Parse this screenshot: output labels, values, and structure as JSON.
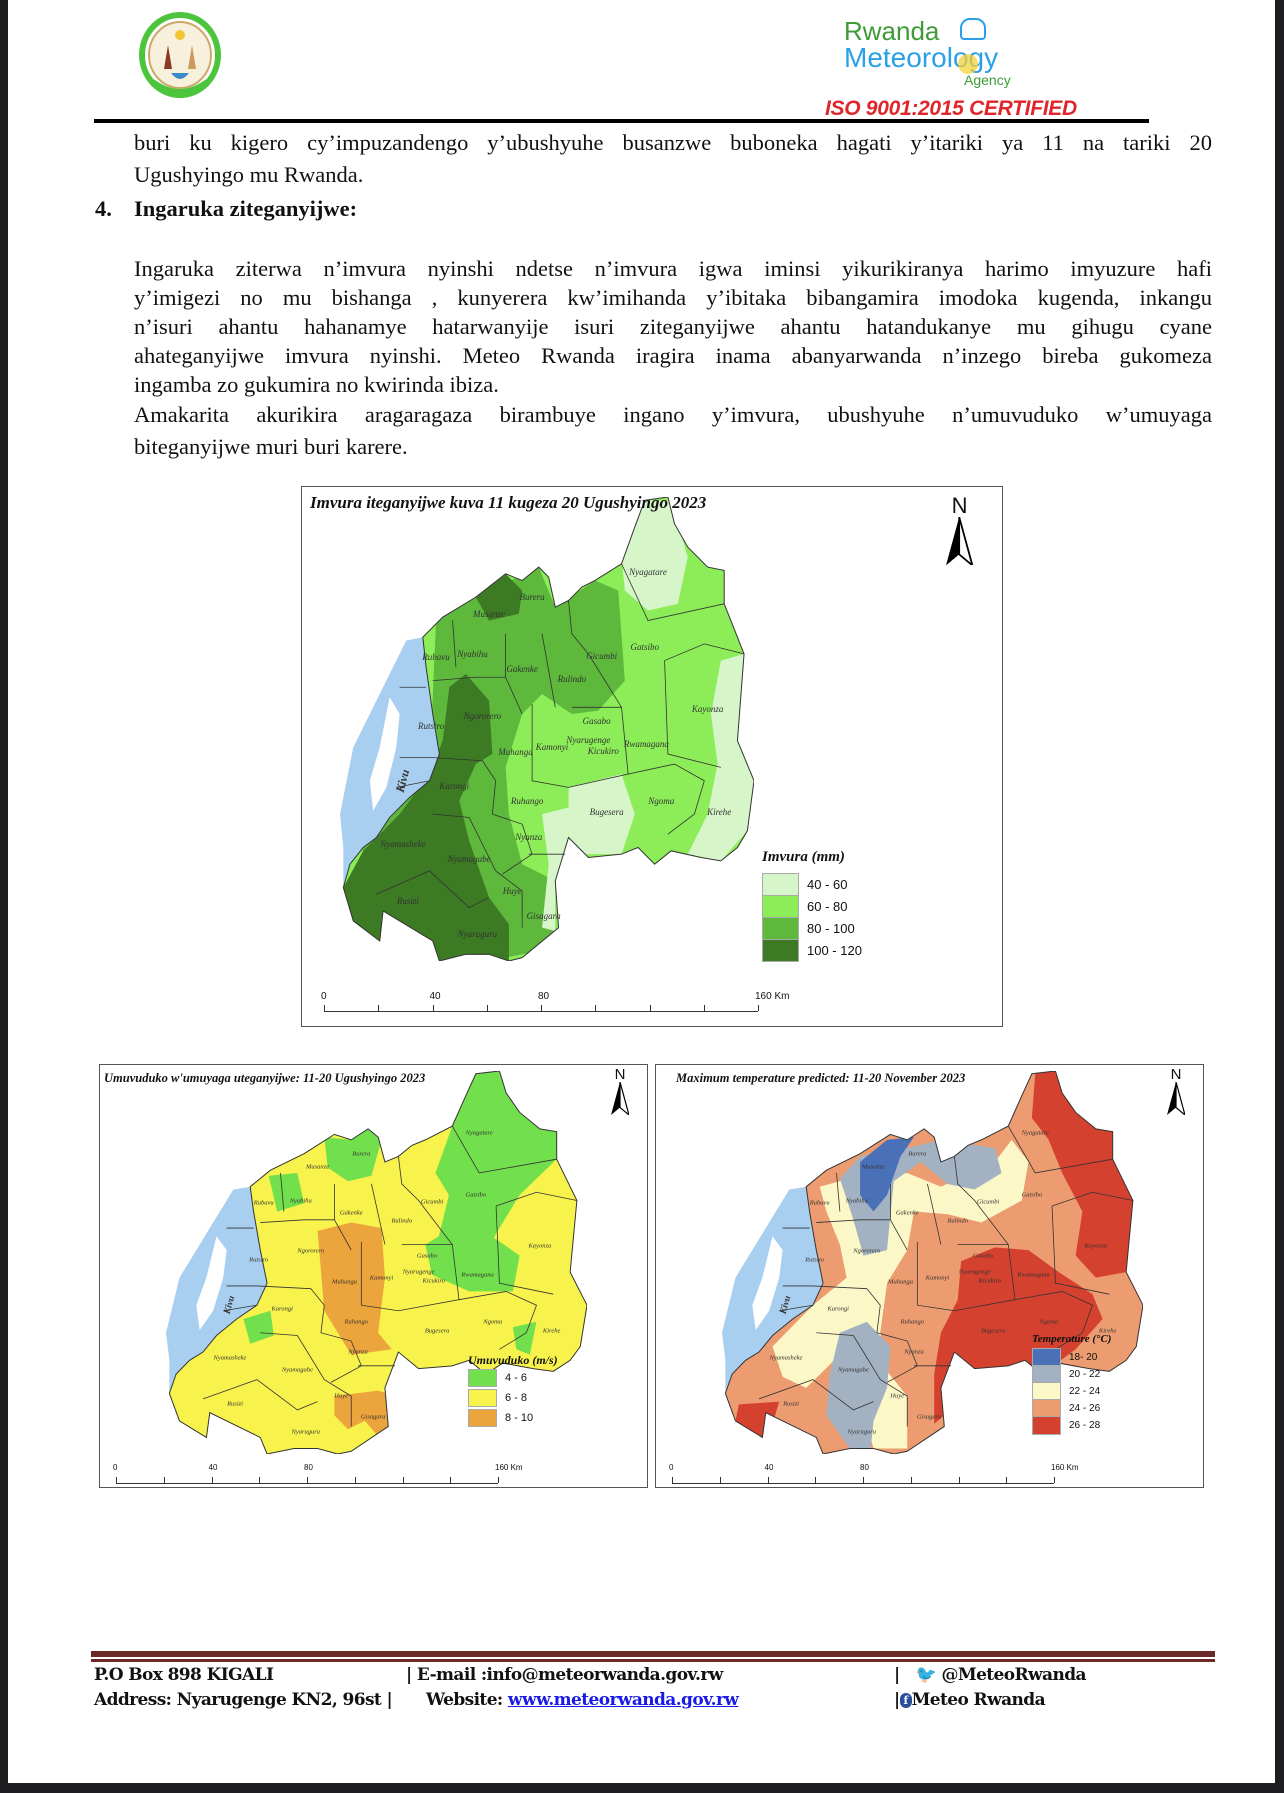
{
  "header": {
    "emblem_logo": "Republic of Rwanda seal",
    "agency_logo": {
      "line1": "Rwanda",
      "line2": "Meteorology",
      "line3": "Agency"
    },
    "certification": "ISO 9001:2015 CERTIFIED"
  },
  "body": {
    "line1": "buri ku kigero cy’impuzandengo y’ubushyuhe busanzwe buboneka hagati y’itariki ya 11 na tariki 20",
    "line2": "Ugushyingo mu Rwanda.",
    "section_number": "4.",
    "section_title": "Ingaruka ziteganyijwe:",
    "para1": [
      "Ingaruka ziterwa n’imvura nyinshi ndetse n’imvura igwa iminsi yikurikiranya harimo imyuzure  hafi",
      "y’imigezi no mu bishanga , kunyerera kw’imihanda y’ibitaka bibangamira imodoka kugenda, inkangu",
      "n’isuri ahantu hahanamye hatarwanyije isuri ziteganyijwe ahantu hatandukanye mu gihugu cyane",
      "ahateganyijwe imvura nyinshi. Meteo Rwanda iragira inama abanyarwanda n’inzego bireba gukomeza",
      "ingamba zo gukumira no kwirinda ibiza."
    ],
    "para2": [
      "Amakarita akurikira aragaragaza birambuye ingano y’imvura, ubushyuhe n’umuvuduko w’umuyaga",
      "biteganyijwe muri buri karere."
    ]
  },
  "districts": [
    "Nyagatare",
    "Burera",
    "Musanze",
    "Gatsibo",
    "Rubavu",
    "Nyabihu",
    "Gakenke",
    "Gicumbi",
    "Rulindo",
    "Kayonza",
    "Rutsiro",
    "Ngororero",
    "Gasabo",
    "Nyarugenge",
    "Kicukiro",
    "Rwamagana",
    "Muhanga",
    "Kamonyi",
    "Karongi",
    "Ruhango",
    "Bugesera",
    "Ngoma",
    "Kirehe",
    "Nyanza",
    "Nyamasheke",
    "Nyamagabe",
    "Huye",
    "Rusizi",
    "Gisagara",
    "Nyaruguru"
  ],
  "lake_label": "Kivu",
  "maps": [
    {
      "title": "Imvura iteganyijwe kuva 11 kugeza 20 Ugushyingo 2023",
      "north": "N",
      "legend_title": "Imvura (mm)",
      "legend": [
        {
          "label": "40 - 60",
          "color": "#d6f5c8"
        },
        {
          "label": "60 - 80",
          "color": "#8ced58"
        },
        {
          "label": "80 - 100",
          "color": "#5db83c"
        },
        {
          "label": "100 - 120",
          "color": "#3c7a24"
        }
      ],
      "scale": [
        "0",
        "40",
        "80",
        "160 Km"
      ]
    },
    {
      "title": "Umuvuduko w'umuyaga uteganyijwe: 11-20 Ugushyingo 2023",
      "north": "N",
      "legend_title": "Umuvuduko (m/s)",
      "legend": [
        {
          "label": "4 - 6",
          "color": "#72e04c"
        },
        {
          "label": "6 - 8",
          "color": "#f8f34c"
        },
        {
          "label": "8 - 10",
          "color": "#eca43c"
        }
      ],
      "scale": [
        "0",
        "40",
        "80",
        "160 Km"
      ]
    },
    {
      "title": "Maximum temperature predicted: 11-20 November 2023",
      "north": "N",
      "legend_title": "Temperature (°C)",
      "legend": [
        {
          "label": "18- 20",
          "color": "#4a70b8"
        },
        {
          "label": "20 - 22",
          "color": "#a3b2c2"
        },
        {
          "label": "22 - 24",
          "color": "#fbf7c6"
        },
        {
          "label": "24 - 26",
          "color": "#ec9c70"
        },
        {
          "label": "26 - 28",
          "color": "#d5412f"
        }
      ],
      "scale": [
        "0",
        "40",
        "80",
        "160 Km"
      ]
    }
  ],
  "colors": {
    "lake": "#a9cff0",
    "iso_red": "#e0262b",
    "footer_rule": "#6b2a2a",
    "link": "#1a1ae6"
  },
  "footer": {
    "po_box": "P.O Box 898 KIGALI",
    "address": "Address: Nyarugenge KN2, 96st |",
    "email": "| E-mail :info@meteorwanda.gov.rw",
    "website_label": "Website:",
    "website": "www.meteorwanda.gov.rw",
    "twitter": "@MeteoRwanda",
    "facebook": "Meteo Rwanda"
  }
}
